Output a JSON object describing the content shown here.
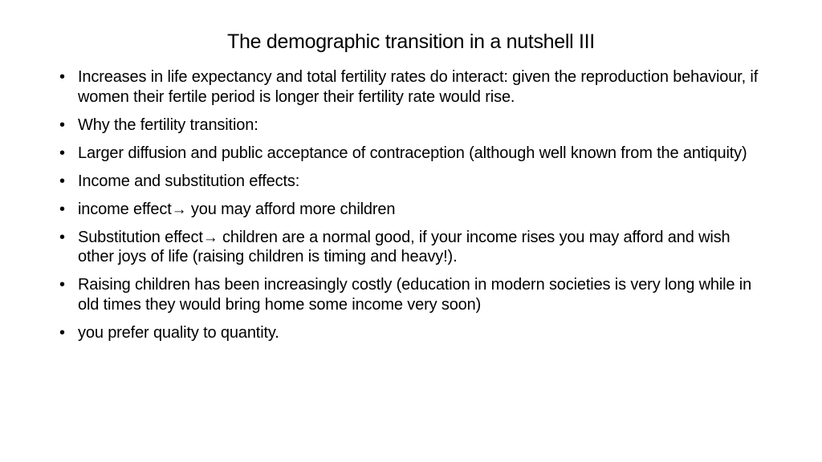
{
  "slide": {
    "title": "The demographic transition in a nutshell III",
    "bullet_marker": "•",
    "arrow_glyph": "→",
    "bullets": [
      {
        "text": "Increases in life expectancy and total fertility rates do interact: given the reproduction behaviour, if women their fertile period is longer their fertility rate would rise."
      },
      {
        "text": "Why the fertility transition:"
      },
      {
        "text": "Larger diffusion and public acceptance of contraception (although well known from the antiquity)"
      },
      {
        "text": "Income and substitution effects:"
      },
      {
        "before": " income effect",
        "after": " you may afford more children"
      },
      {
        "before": "Substitution effect",
        "after": " children are a normal good, if your income rises you may afford and wish other joys of life (raising children is timing and heavy!)."
      },
      {
        "text": "Raising children has been increasingly costly (education in modern societies is very long while in old times they would bring home some income very soon)"
      },
      {
        "text": " you prefer quality to quantity."
      }
    ]
  }
}
